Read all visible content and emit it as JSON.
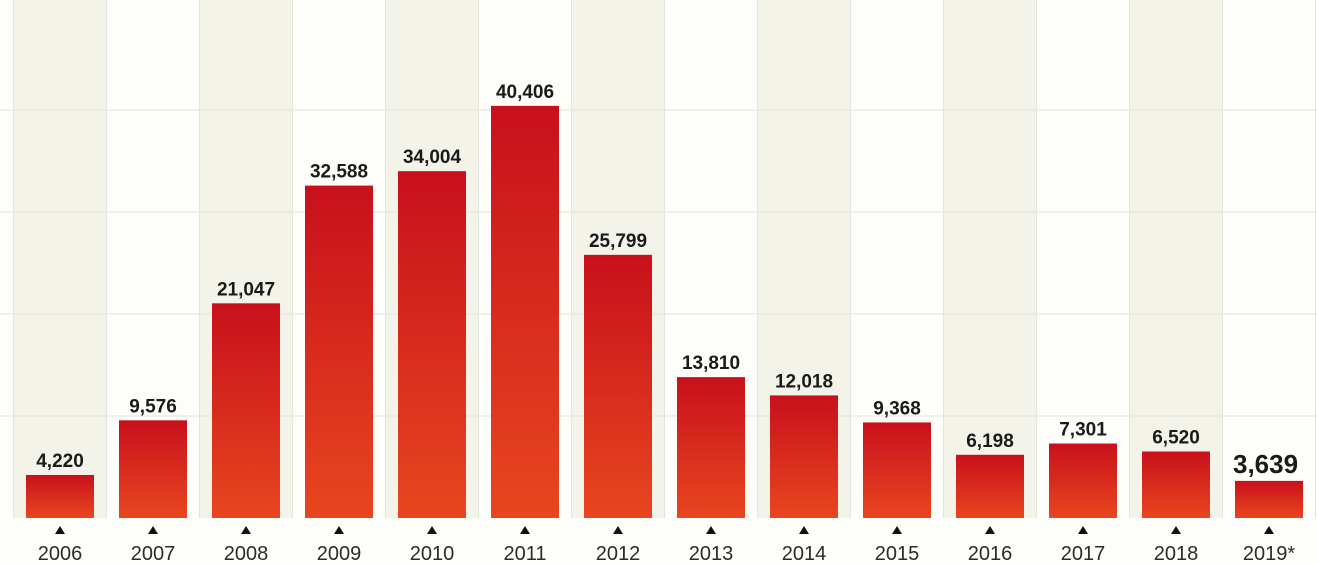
{
  "chart_data": {
    "type": "bar",
    "title": "",
    "xlabel": "",
    "ylabel": "",
    "categories": [
      "2006",
      "2007",
      "2008",
      "2009",
      "2010",
      "2011",
      "2012",
      "2013",
      "2014",
      "2015",
      "2016",
      "2017",
      "2018",
      "2019*"
    ],
    "values": [
      4220,
      9576,
      21047,
      32588,
      34004,
      40406,
      25799,
      13810,
      12018,
      9368,
      6198,
      7301,
      6520,
      3639
    ],
    "value_labels": [
      "4,220",
      "9,576",
      "21,047",
      "32,588",
      "34,004",
      "40,406",
      "25,799",
      "13,810",
      "12,018",
      "9,368",
      "6,198",
      "7,301",
      "6,520",
      "3,639"
    ],
    "ylim": [
      0,
      50000
    ],
    "grid": true,
    "legend": "none",
    "highlight_last": true,
    "colors": {
      "bar_low": "#e8461f",
      "bar_high": "#c8101c",
      "background": "#fdfdf9",
      "column_band": "#f4f3e9",
      "grid": "#e4e3dc",
      "text": "#1a1a1a"
    }
  }
}
